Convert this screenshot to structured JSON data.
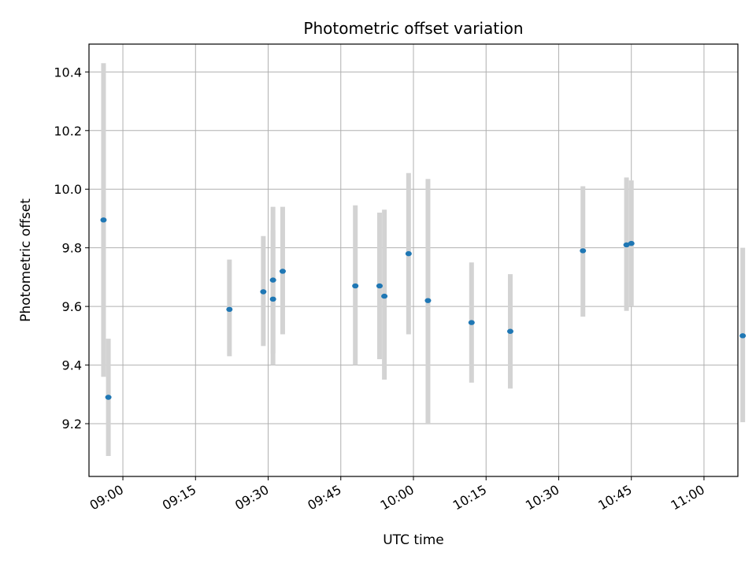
{
  "chart_data": {
    "type": "scatter",
    "title": "Photometric offset variation",
    "xlabel": "UTC time",
    "ylabel": "Photometric offset",
    "grid": true,
    "legend": "none",
    "x_range": [
      "08:53",
      "11:07"
    ],
    "ylim": [
      9.02,
      10.495
    ],
    "x_ticks": [
      "09:00",
      "09:15",
      "09:30",
      "09:45",
      "10:00",
      "10:15",
      "10:30",
      "10:45",
      "11:00"
    ],
    "y_ticks": [
      "9.2",
      "9.4",
      "9.6",
      "9.8",
      "10.0",
      "10.2",
      "10.4"
    ],
    "colors": {
      "point": "#1f77b4",
      "errorbar": "#d3d3d3",
      "grid": "#b0b0b0"
    },
    "series": [
      {
        "points": [
          {
            "x": "08:56",
            "y": 9.895,
            "low": 9.36,
            "high": 10.43
          },
          {
            "x": "08:57",
            "y": 9.29,
            "low": 9.09,
            "high": 9.49
          },
          {
            "x": "09:22",
            "y": 9.59,
            "low": 9.43,
            "high": 9.76
          },
          {
            "x": "09:29",
            "y": 9.65,
            "low": 9.465,
            "high": 9.84
          },
          {
            "x": "09:31",
            "y": 9.625,
            "low": 9.4,
            "high": 9.86
          },
          {
            "x": "09:31",
            "y": 9.69,
            "low": 9.44,
            "high": 9.94
          },
          {
            "x": "09:33",
            "y": 9.72,
            "low": 9.505,
            "high": 9.94
          },
          {
            "x": "09:48",
            "y": 9.67,
            "low": 9.4,
            "high": 9.945
          },
          {
            "x": "09:53",
            "y": 9.67,
            "low": 9.42,
            "high": 9.92
          },
          {
            "x": "09:54",
            "y": 9.635,
            "low": 9.35,
            "high": 9.93
          },
          {
            "x": "09:59",
            "y": 9.78,
            "low": 9.505,
            "high": 10.055
          },
          {
            "x": "10:03",
            "y": 9.62,
            "low": 9.2,
            "high": 10.035
          },
          {
            "x": "10:12",
            "y": 9.545,
            "low": 9.34,
            "high": 9.75
          },
          {
            "x": "10:20",
            "y": 9.515,
            "low": 9.32,
            "high": 9.71
          },
          {
            "x": "10:35",
            "y": 9.79,
            "low": 9.565,
            "high": 10.01
          },
          {
            "x": "10:44",
            "y": 9.81,
            "low": 9.585,
            "high": 10.04
          },
          {
            "x": "10:45",
            "y": 9.815,
            "low": 9.6,
            "high": 10.03
          },
          {
            "x": "11:08",
            "y": 9.5,
            "low": 9.205,
            "high": 9.8
          }
        ]
      }
    ]
  }
}
